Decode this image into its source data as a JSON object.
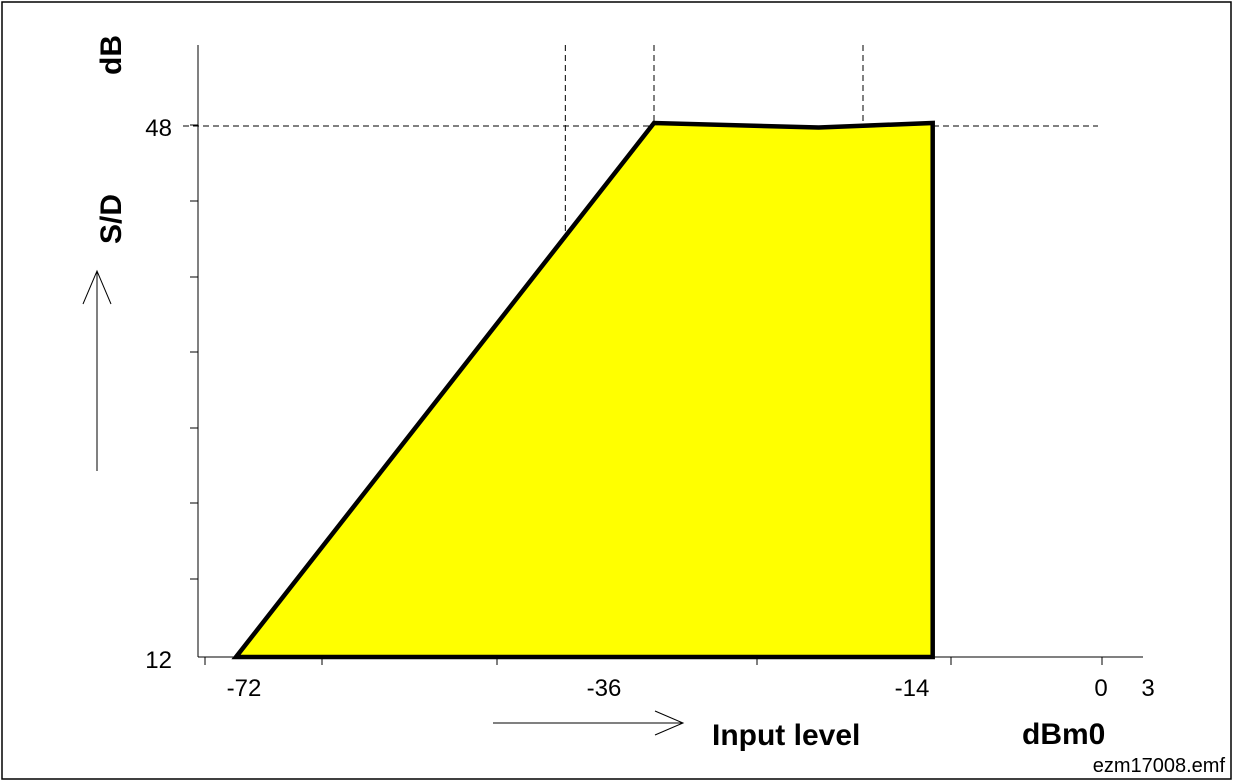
{
  "chart_data": {
    "type": "area",
    "series": [
      {
        "x": [
          -69,
          -36,
          -23,
          -14,
          -14,
          -69
        ],
        "y": [
          12,
          48.2,
          47.9,
          48.2,
          12,
          12
        ],
        "fill": "#ffff00",
        "stroke": "#000000"
      }
    ],
    "x_ticks": [
      "-72",
      "-36",
      "-14",
      "0",
      "3"
    ],
    "y_ticks": [
      "48",
      "12"
    ],
    "xlim": [
      -72,
      3
    ],
    "ylim": [
      12,
      48
    ],
    "reference_lines": {
      "x": [
        -43,
        -36,
        -19.5
      ],
      "y": [
        48
      ]
    },
    "xlabel": "Input level",
    "xunit": "dBm0",
    "ylabel": "S/D",
    "yunit": "dB",
    "footer": "ezm17008.emf",
    "grid": false
  }
}
